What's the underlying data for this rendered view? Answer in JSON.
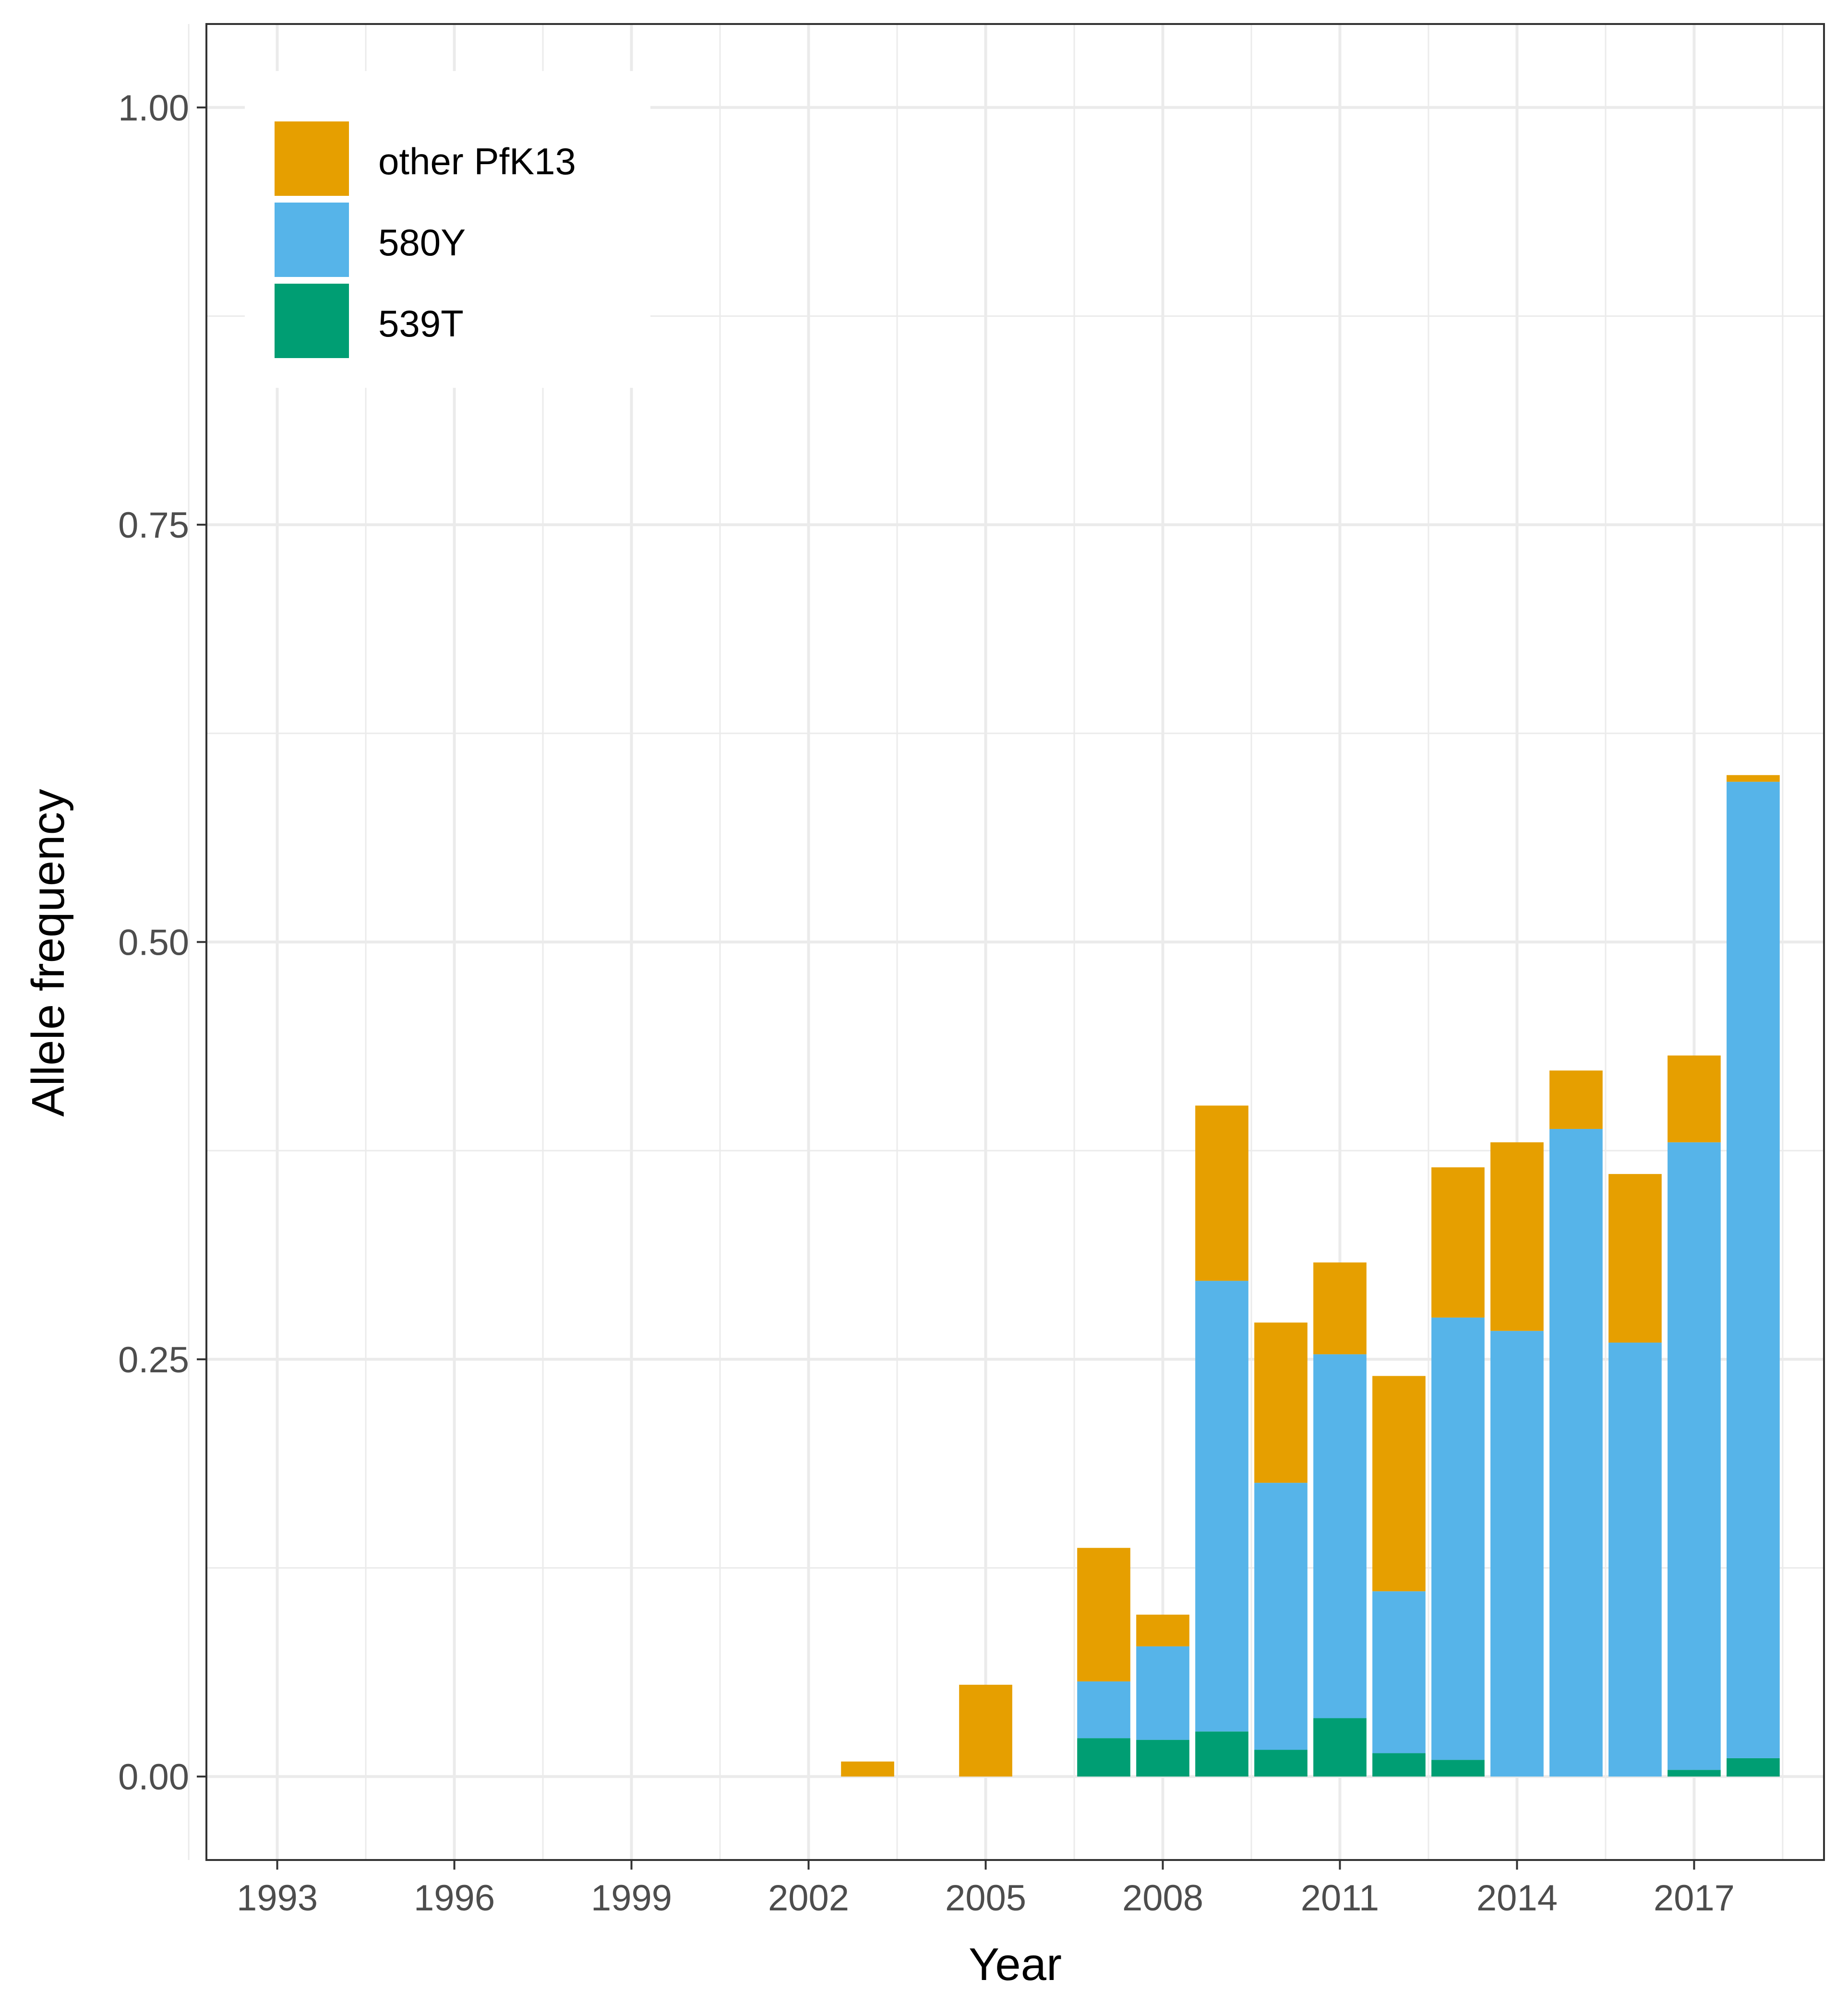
{
  "chart_data": {
    "type": "bar",
    "stacked": true,
    "xlabel": "Year",
    "ylabel": "Allele frequency",
    "x_ticks": [
      "1993",
      "1996",
      "1999",
      "2002",
      "2005",
      "2008",
      "2011",
      "2014",
      "2017"
    ],
    "y_ticks": [
      "0.00",
      "0.25",
      "0.50",
      "0.75",
      "1.00"
    ],
    "xlim": [
      1991.8,
      2019.2
    ],
    "ylim": [
      -0.05,
      1.05
    ],
    "grid": true,
    "legend_position": "top-left",
    "categories": [
      2003,
      2005,
      2007,
      2008,
      2009,
      2010,
      2011,
      2012,
      2013,
      2014,
      2015,
      2016,
      2017,
      2018
    ],
    "series": [
      {
        "name": "539T",
        "color": "#009E73",
        "values": [
          0,
          0,
          0.023,
          0.022,
          0.027,
          0.016,
          0.035,
          0.014,
          0.01,
          0,
          0,
          0,
          0.004,
          0.011
        ]
      },
      {
        "name": "580Y",
        "color": "#56B4E9",
        "values": [
          0,
          0,
          0.034,
          0.056,
          0.27,
          0.16,
          0.218,
          0.097,
          0.265,
          0.267,
          0.388,
          0.26,
          0.376,
          0.585
        ]
      },
      {
        "name": "other PfK13",
        "color": "#E69F00",
        "values": [
          0.009,
          0.055,
          0.08,
          0.019,
          0.105,
          0.096,
          0.055,
          0.129,
          0.09,
          0.113,
          0.035,
          0.101,
          0.052,
          0.004
        ]
      }
    ],
    "legend_order": [
      "other PfK13",
      "580Y",
      "539T"
    ]
  }
}
